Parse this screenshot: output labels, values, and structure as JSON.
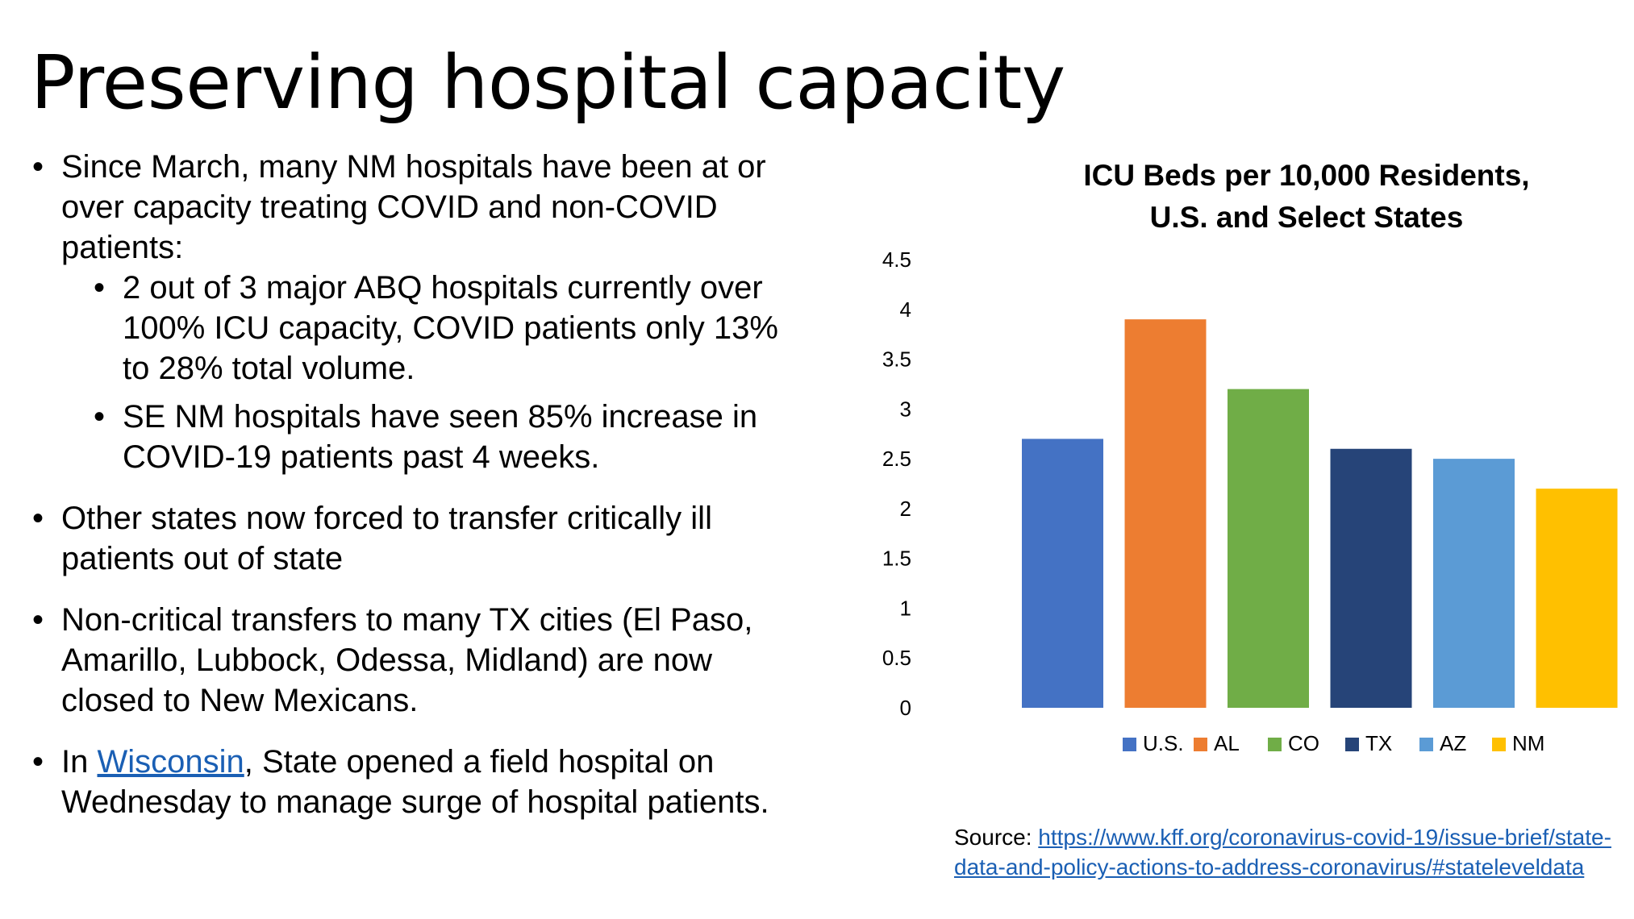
{
  "slide": {
    "title": "Preserving hospital capacity",
    "bullets": {
      "b1": "Since March, many NM hospitals have been at or over capacity treating COVID and non-COVID patients:",
      "b1_sub1": "2 out of 3 major ABQ hospitals currently over 100% ICU capacity, COVID patients only 13% to 28% total volume.",
      "b1_sub2": "SE NM hospitals have seen 85% increase in COVID-19 patients past 4 weeks.",
      "b2": "Other states now forced to transfer critically ill patients out of state",
      "b3": "Non-critical transfers to many TX cities (El Paso, Amarillo, Lubbock, Odessa, Midland) are now closed to New Mexicans.",
      "b4_prefix": "In ",
      "b4_link": "Wisconsin",
      "b4_suffix": ", State opened a field hospital on Wednesday to manage surge of hospital patients."
    },
    "source": {
      "label": "Source: ",
      "url": "https://www.kff.org/coronavirus-covid-19/issue-brief/state-data-and-policy-actions-to-address-coronavirus/#stateleveldata"
    }
  },
  "chart_data": {
    "type": "bar",
    "title_line1": "ICU Beds per 10,000 Residents,",
    "title_line2": "U.S. and Select States",
    "categories": [
      "U.S.",
      "AL",
      "CO",
      "TX",
      "AZ",
      "NM"
    ],
    "values": [
      2.7,
      3.9,
      3.2,
      2.6,
      2.5,
      2.2
    ],
    "colors": [
      "#4472C4",
      "#ED7D31",
      "#70AD47",
      "#264478",
      "#5B9BD5",
      "#FFC000"
    ],
    "yticks": [
      "0",
      "0.5",
      "1",
      "1.5",
      "2",
      "2.5",
      "3",
      "3.5",
      "4",
      "4.5"
    ],
    "ylim": [
      0,
      4.5
    ],
    "grid": false,
    "legend_position": "bottom"
  }
}
